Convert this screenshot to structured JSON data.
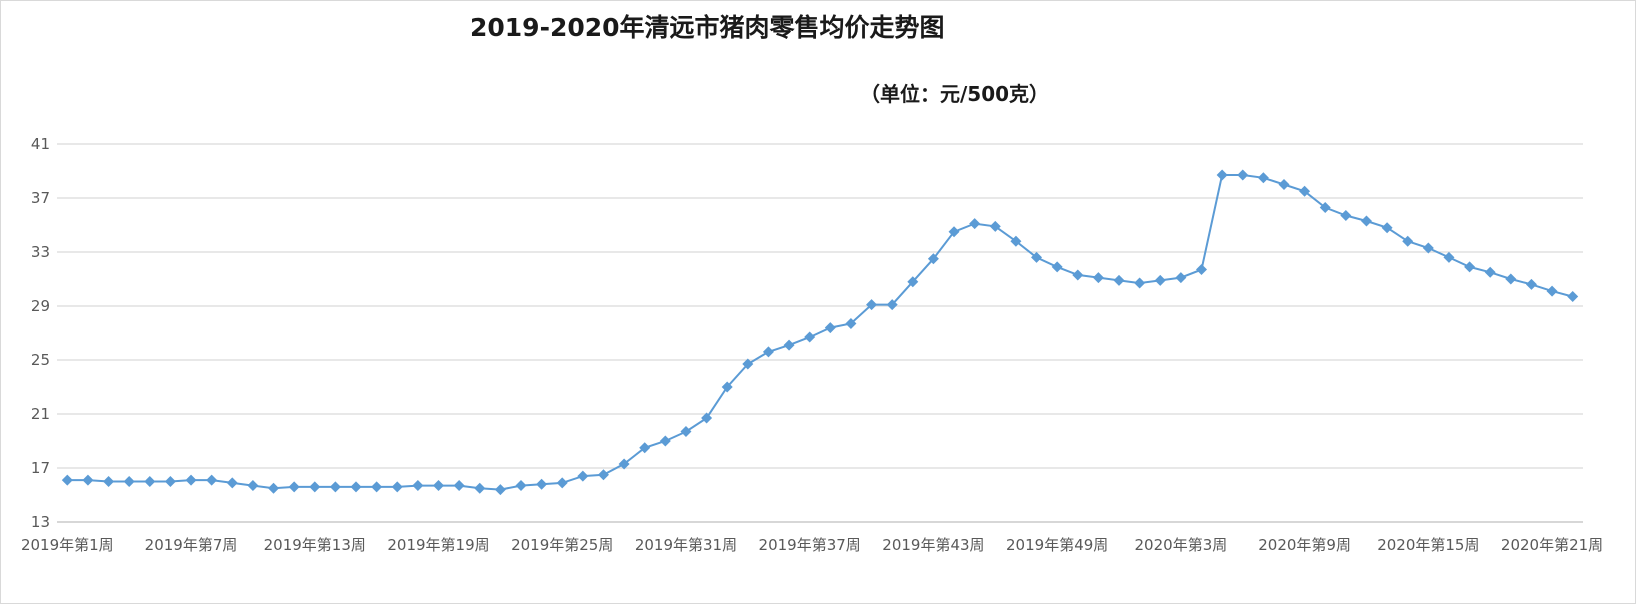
{
  "chart_data": {
    "type": "line",
    "title": "2019-2020年清远市猪肉零售均价走势图",
    "subtitle": "（单位：元/500克）",
    "xlabel": "",
    "ylabel": "",
    "ylim": [
      13,
      41
    ],
    "yticks": [
      13,
      17,
      21,
      25,
      29,
      33,
      37,
      41
    ],
    "grid": "horizontal",
    "legend": "none",
    "line_color": "#5b9bd5",
    "marker": "diamond",
    "x_tick_labels": [
      "2019年第1周",
      "2019年第7周",
      "2019年第13周",
      "2019年第19周",
      "2019年第25周",
      "2019年第31周",
      "2019年第37周",
      "2019年第43周",
      "2019年第49周",
      "2020年第3周",
      "2020年第9周",
      "2020年第15周",
      "2020年第21周"
    ],
    "x_tick_every": 6,
    "series": [
      {
        "values": [
          16.1,
          16.1,
          16.0,
          16.0,
          16.0,
          16.0,
          16.1,
          16.1,
          15.9,
          15.7,
          15.5,
          15.6,
          15.6,
          15.6,
          15.6,
          15.6,
          15.6,
          15.7,
          15.7,
          15.7,
          15.5,
          15.4,
          15.7,
          15.8,
          15.9,
          16.4,
          16.5,
          17.3,
          18.5,
          19.0,
          19.7,
          20.7,
          23.0,
          24.7,
          25.6,
          26.1,
          26.7,
          27.4,
          27.7,
          29.1,
          29.1,
          30.8,
          32.5,
          34.5,
          35.1,
          34.9,
          33.8,
          32.6,
          31.9,
          31.3,
          31.1,
          30.9,
          30.7,
          30.9,
          31.1,
          31.7,
          38.7,
          38.7,
          38.5,
          38.0,
          37.5,
          36.3,
          35.7,
          35.3,
          34.8,
          33.8,
          33.3,
          32.6,
          31.9,
          31.5,
          31.0,
          30.6,
          30.1,
          29.7
        ]
      }
    ]
  }
}
